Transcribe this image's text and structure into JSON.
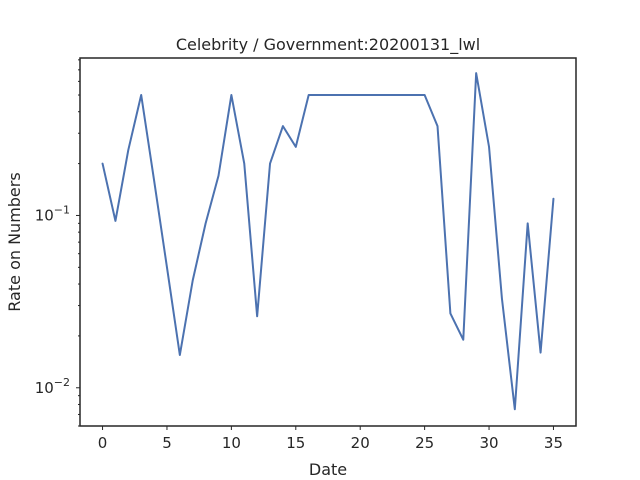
{
  "chart_data": {
    "type": "line",
    "title": "Celebrity / Government:20200131_lwl",
    "xlabel": "Date",
    "ylabel": "Rate on Numbers",
    "yscale": "log",
    "xlim": [
      -1.75,
      36.75
    ],
    "ylim": [
      0.006,
      0.82
    ],
    "x_ticks": [
      0,
      5,
      10,
      15,
      20,
      25,
      30,
      35
    ],
    "y_ticks": [
      {
        "value": 0.01,
        "base": "10",
        "exp": "−2"
      },
      {
        "value": 0.1,
        "base": "10",
        "exp": "−1"
      }
    ],
    "grid": false,
    "series": [
      {
        "color": "#4c72b0",
        "x": [
          0,
          1,
          2,
          3,
          4,
          5,
          6,
          7,
          8,
          9,
          10,
          11,
          12,
          13,
          14,
          15,
          16,
          17,
          18,
          19,
          20,
          21,
          22,
          23,
          24,
          25,
          26,
          27,
          28,
          29,
          30,
          31,
          32,
          33,
          34,
          35
        ],
        "y": [
          0.2,
          0.093,
          0.24,
          0.5,
          0.16,
          0.05,
          0.0155,
          0.042,
          0.09,
          0.17,
          0.5,
          0.2,
          0.026,
          0.2,
          0.33,
          0.25,
          0.5,
          0.5,
          0.5,
          0.5,
          0.5,
          0.5,
          0.5,
          0.5,
          0.5,
          0.5,
          0.33,
          0.027,
          0.019,
          0.67,
          0.25,
          0.033,
          0.0075,
          0.09,
          0.016,
          0.125
        ]
      }
    ]
  }
}
